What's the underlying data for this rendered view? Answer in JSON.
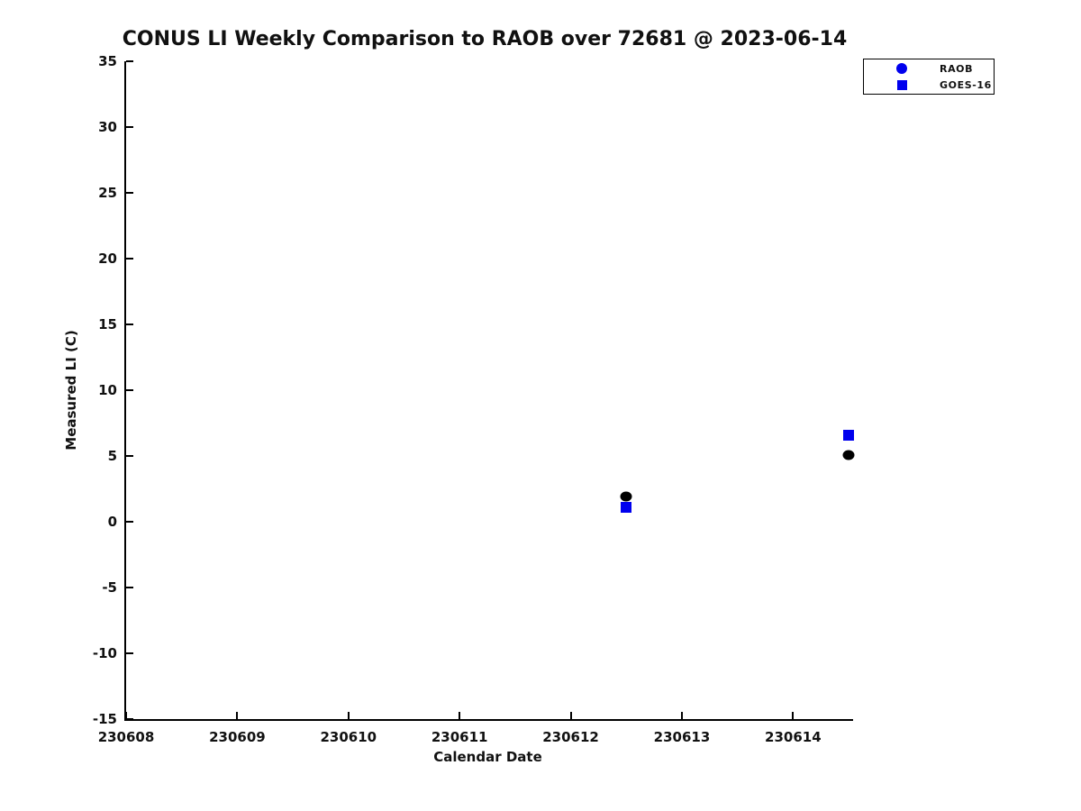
{
  "chart_data": {
    "type": "scatter",
    "title": "CONUS LI Weekly Comparison to RAOB over 72681 @ 2023-06-14",
    "xlabel": "Calendar Date",
    "ylabel": "Measured LI (C)",
    "xlim": [
      230608,
      230614.54
    ],
    "ylim": [
      -15,
      35
    ],
    "xticks": [
      230608,
      230609,
      230610,
      230611,
      230612,
      230613,
      230614
    ],
    "yticks": [
      35,
      30,
      25,
      20,
      15,
      10,
      5,
      0,
      -5,
      -10,
      -15
    ],
    "grid": false,
    "legend_position": "outside-top-right",
    "series": [
      {
        "name": "RAOB",
        "marker": "circle",
        "marker_color": "#000000",
        "legend_marker_color": "#0000EE",
        "points": [
          {
            "x": 230612.5,
            "y": 1.9
          },
          {
            "x": 230614.5,
            "y": 5.1
          }
        ]
      },
      {
        "name": "GOES-16",
        "marker": "square",
        "marker_color": "#0000EE",
        "legend_marker_color": "#0000EE",
        "points": [
          {
            "x": 230612.5,
            "y": 1.1
          },
          {
            "x": 230614.5,
            "y": 6.6
          }
        ]
      }
    ]
  },
  "colors": {
    "accent_blue": "#0000EE",
    "marker_black": "#000000",
    "axis": "#000000",
    "background": "#ffffff"
  }
}
